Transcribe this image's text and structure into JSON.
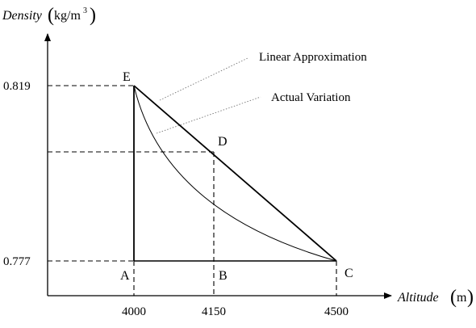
{
  "figure": {
    "y_axis": {
      "label": "Density",
      "unit": "kg/m",
      "unit_superscript": "3"
    },
    "x_axis": {
      "label": "Altitude",
      "unit": "m"
    },
    "x_ticks": [
      "4000",
      "4150",
      "4500"
    ],
    "y_ticks": [
      "0.819",
      "0.777"
    ],
    "points": {
      "A": "A",
      "B": "B",
      "C": "C",
      "D": "D",
      "E": "E"
    },
    "annotations": {
      "linear": "Linear Approximation",
      "actual": "Actual Variation"
    }
  }
}
